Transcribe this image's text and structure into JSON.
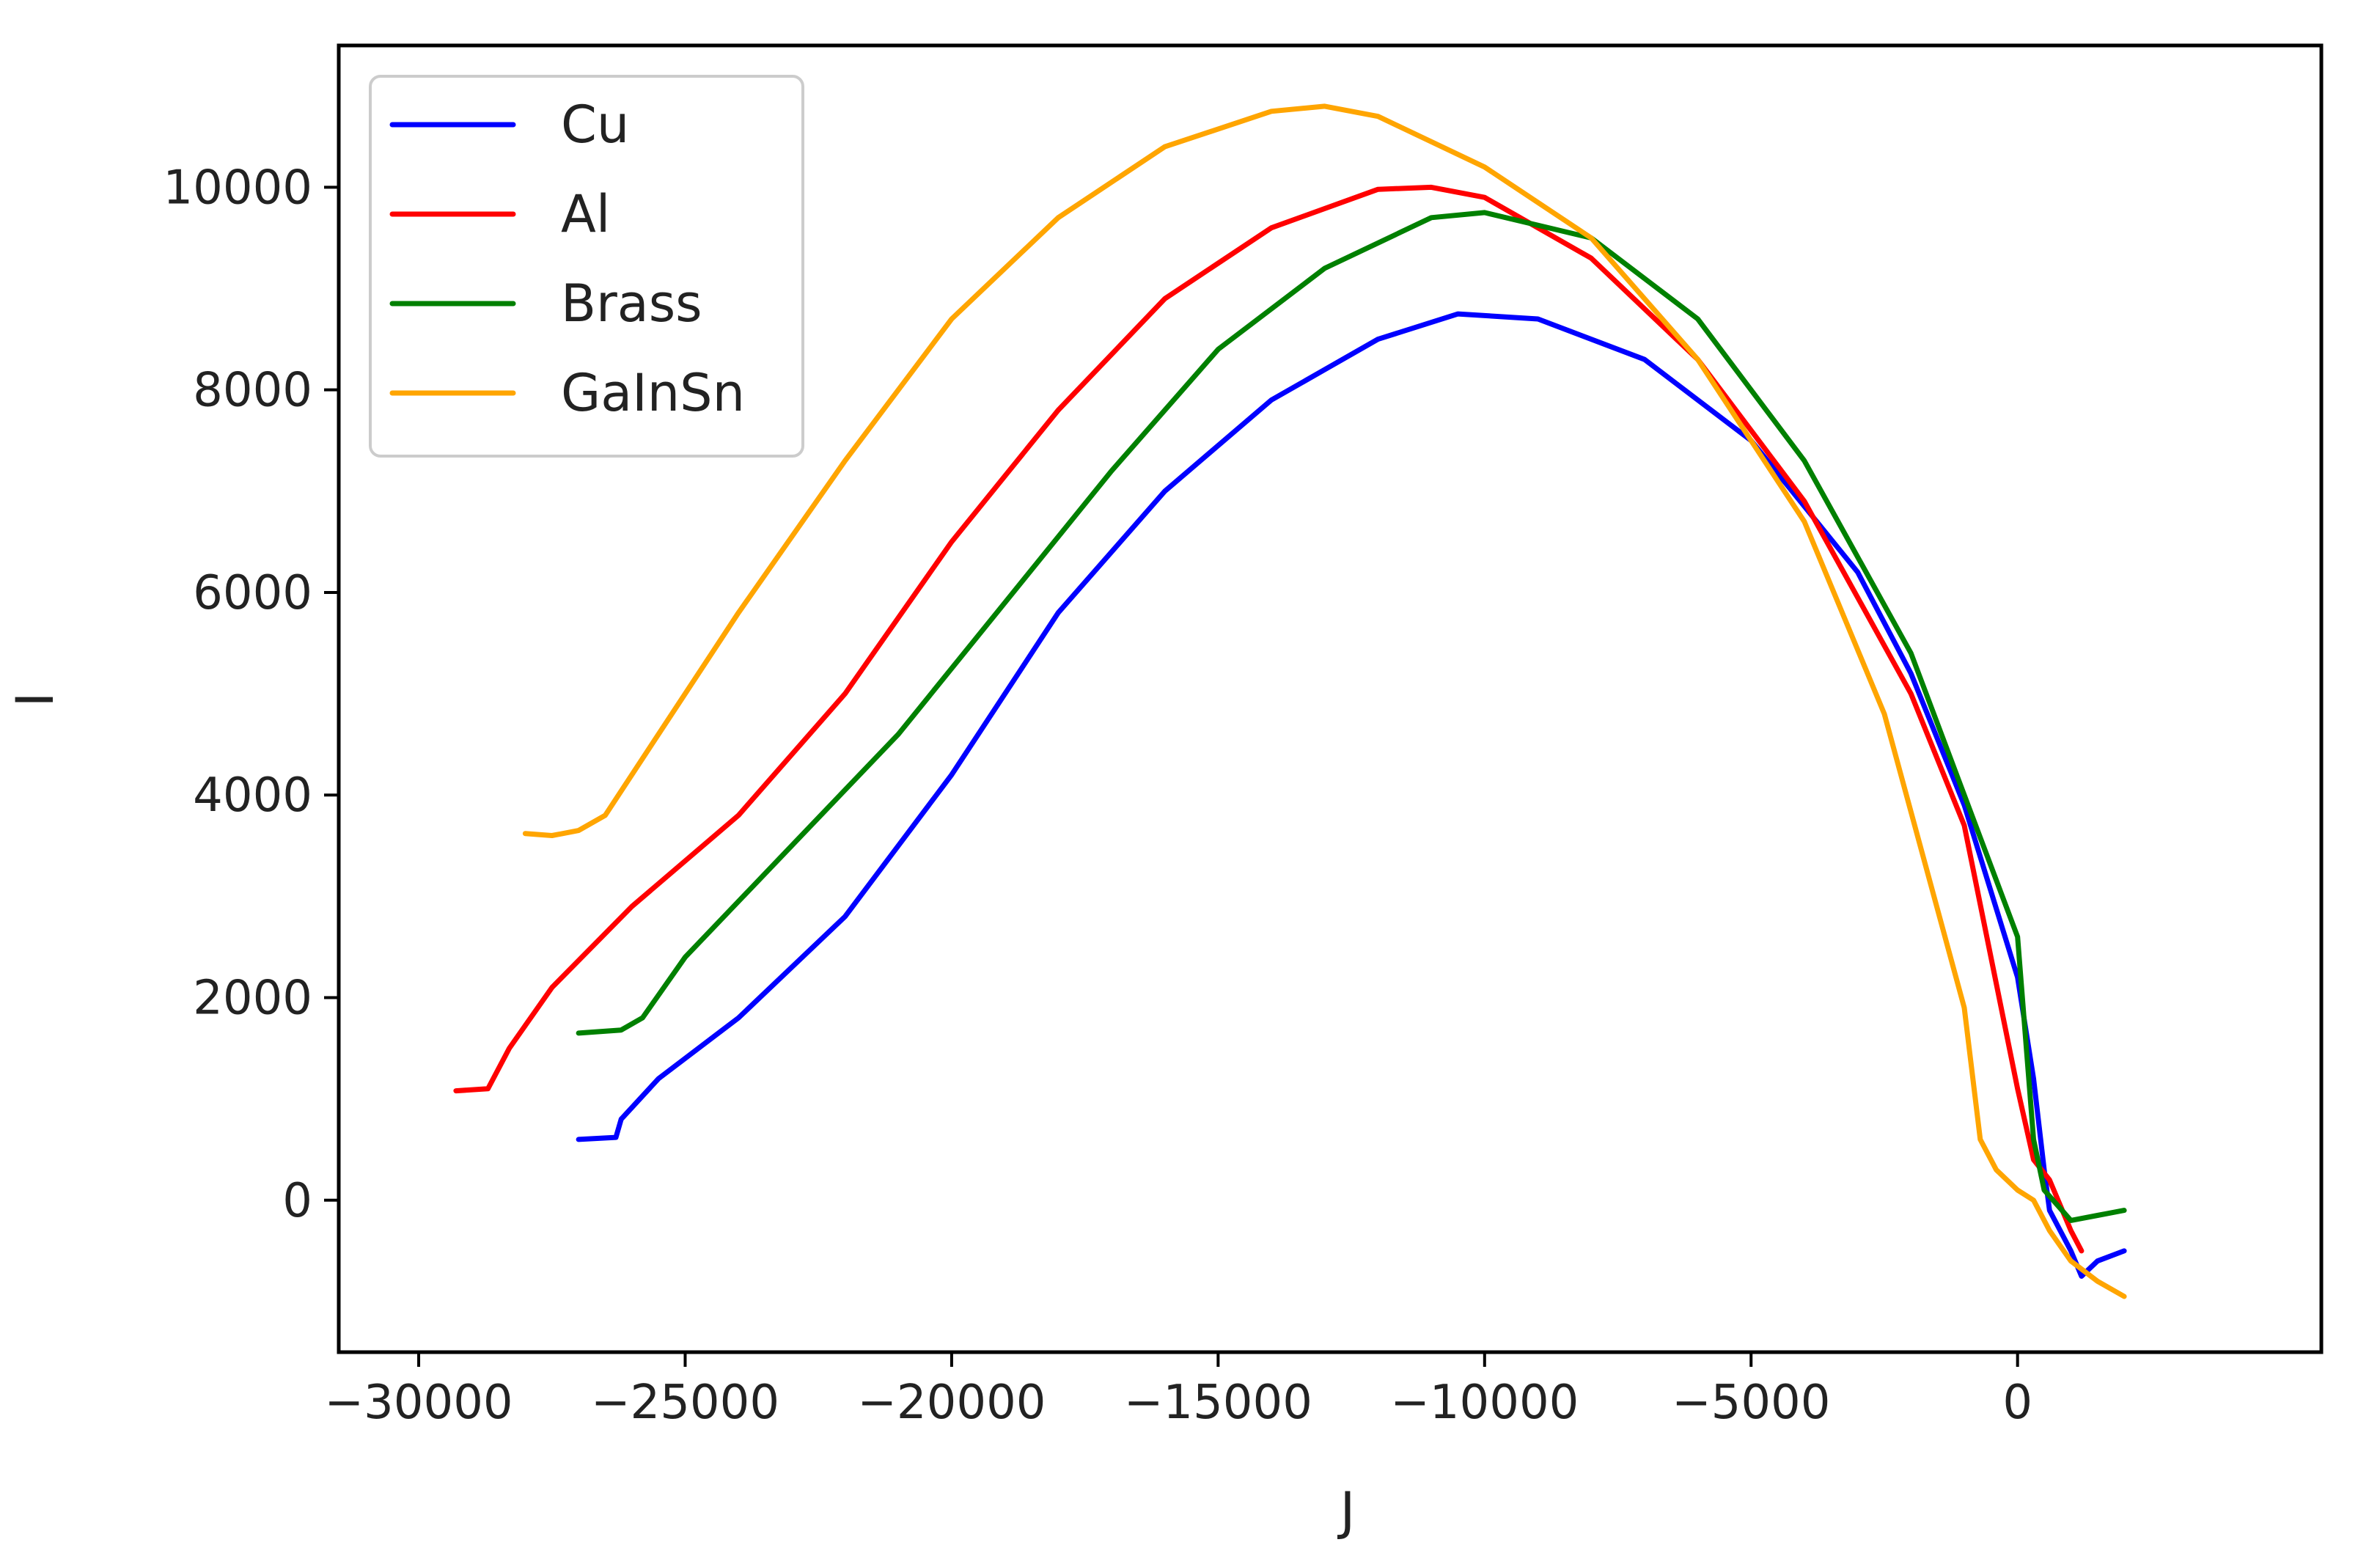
{
  "chart_data": {
    "type": "line",
    "title": "",
    "xlabel": "J",
    "ylabel": "I",
    "xlim": [
      -31500,
      5700
    ],
    "ylim": [
      -1500,
      11400
    ],
    "xticks": [
      -30000,
      -25000,
      -20000,
      -15000,
      -10000,
      -5000,
      0
    ],
    "xtick_labels": [
      "−30000",
      "−25000",
      "−20000",
      "−15000",
      "−10000",
      "−5000",
      "0"
    ],
    "yticks": [
      0,
      2000,
      4000,
      6000,
      8000,
      10000
    ],
    "ytick_labels": [
      "0",
      "2000",
      "4000",
      "6000",
      "8000",
      "10000"
    ],
    "grid": false,
    "legend_position": "top-left",
    "series": [
      {
        "name": "Cu",
        "color": "#0000ff",
        "x": [
          -27000,
          -26300,
          -26200,
          -25500,
          -24000,
          -22000,
          -20000,
          -18000,
          -16000,
          -14000,
          -12000,
          -10500,
          -9000,
          -7000,
          -5000,
          -3000,
          -2000,
          -1000,
          0,
          300,
          500,
          600,
          1000,
          1200,
          1500,
          2000
        ],
        "y": [
          600,
          620,
          800,
          1200,
          1800,
          2800,
          4200,
          5800,
          7000,
          7900,
          8500,
          8750,
          8700,
          8300,
          7500,
          6200,
          5200,
          3900,
          2200,
          1200,
          300,
          -100,
          -500,
          -750,
          -600,
          -500
        ]
      },
      {
        "name": "Al",
        "color": "#ff0000",
        "x": [
          -29300,
          -28700,
          -28300,
          -27500,
          -26000,
          -24000,
          -22000,
          -20000,
          -18000,
          -16000,
          -14000,
          -12000,
          -11000,
          -10000,
          -8000,
          -6000,
          -4000,
          -2000,
          -1000,
          0,
          300,
          600,
          1000,
          1200
        ],
        "y": [
          1080,
          1100,
          1500,
          2100,
          2900,
          3800,
          5000,
          6500,
          7800,
          8900,
          9600,
          9980,
          10000,
          9900,
          9300,
          8300,
          6900,
          5000,
          3700,
          1100,
          400,
          200,
          -300,
          -500
        ]
      },
      {
        "name": "Brass",
        "color": "#008000",
        "x": [
          -27000,
          -26200,
          -25800,
          -25000,
          -23000,
          -21000,
          -19000,
          -17000,
          -15000,
          -13000,
          -11000,
          -10000,
          -8000,
          -6000,
          -4000,
          -2000,
          -1000,
          0,
          300,
          500,
          1000,
          1500,
          2000
        ],
        "y": [
          1650,
          1680,
          1800,
          2400,
          3500,
          4600,
          5900,
          7200,
          8400,
          9200,
          9700,
          9750,
          9500,
          8700,
          7300,
          5400,
          4000,
          2600,
          600,
          100,
          -200,
          -150,
          -100
        ]
      },
      {
        "name": "GaInSn",
        "color": "#ffa500",
        "x": [
          -28000,
          -27500,
          -27000,
          -26500,
          -25500,
          -24000,
          -22000,
          -20000,
          -18000,
          -16000,
          -14000,
          -13000,
          -12000,
          -10000,
          -8000,
          -6000,
          -4000,
          -2500,
          -1000,
          -700,
          -400,
          0,
          300,
          600,
          1000,
          1500,
          2000
        ],
        "y": [
          3620,
          3600,
          3650,
          3800,
          4600,
          5800,
          7300,
          8700,
          9700,
          10400,
          10750,
          10800,
          10700,
          10200,
          9500,
          8300,
          6700,
          4800,
          1900,
          600,
          300,
          100,
          0,
          -300,
          -600,
          -800,
          -950
        ]
      }
    ]
  }
}
